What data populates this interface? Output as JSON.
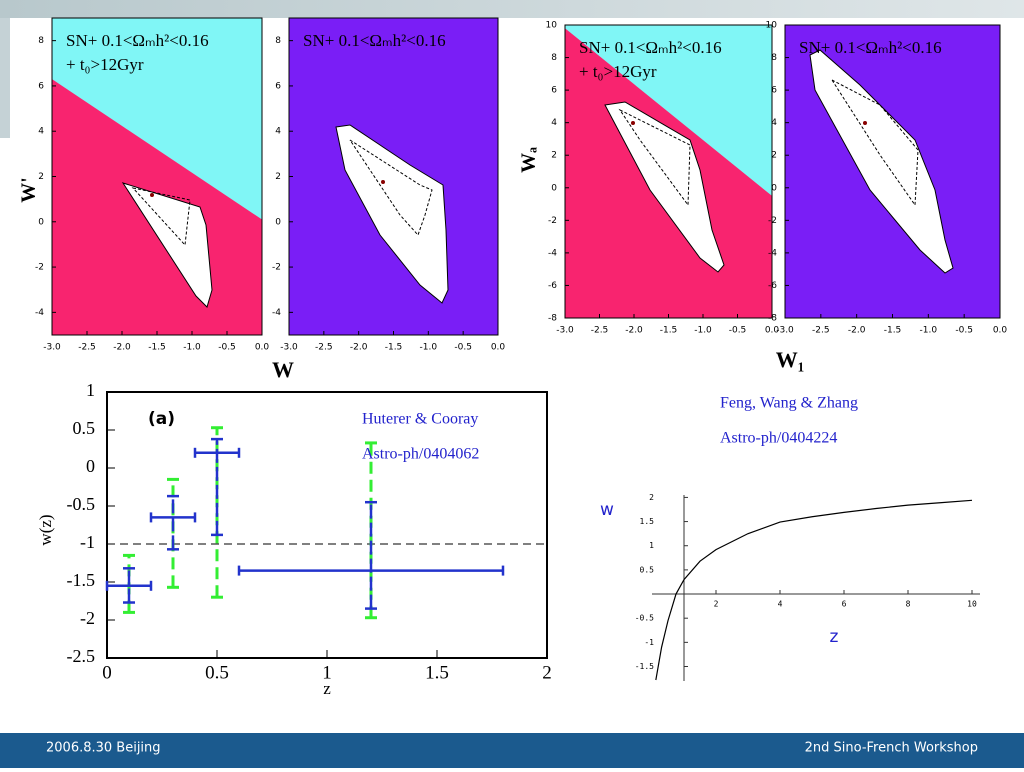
{
  "panels": [
    {
      "xlim": [
        -3,
        0
      ],
      "ylim": [
        -5,
        9
      ],
      "xticks": [
        {
          "value": -3,
          "label": "-3.0"
        },
        {
          "value": -2.5,
          "label": "-2.5"
        },
        {
          "value": -2,
          "label": "-2.0"
        },
        {
          "value": -1.5,
          "label": "-1.5"
        },
        {
          "value": -1,
          "label": "-1.0"
        },
        {
          "value": -0.5,
          "label": "-0.5"
        },
        {
          "value": 0,
          "label": "0.0"
        }
      ],
      "yticks": [
        -4,
        -2,
        0,
        2,
        4,
        6,
        8
      ],
      "background": "#f8246f",
      "region_color": "#80f6f6",
      "region_boundary": {
        "x": [
          -3,
          0
        ],
        "y": [
          6.3,
          0.1
        ]
      },
      "label_lines": [
        "SN+ 0.1<Ωₘh²<0.16",
        "+ t₀>12Gyr"
      ]
    },
    {
      "xlim": [
        -3,
        0
      ],
      "ylim": [
        -5,
        9
      ],
      "xticks": [
        {
          "value": -3,
          "label": "-3.0"
        },
        {
          "value": -2.5,
          "label": "-2.5"
        },
        {
          "value": -2,
          "label": "-2.0"
        },
        {
          "value": -1.5,
          "label": "-1.5"
        },
        {
          "value": -1,
          "label": "-1.0"
        },
        {
          "value": -0.5,
          "label": "-0.5"
        },
        {
          "value": 0,
          "label": "0.0"
        }
      ],
      "yticks": [
        -4,
        -2,
        0,
        2,
        4,
        6,
        8
      ],
      "background": "#7a1ef6",
      "label_lines": [
        "SN+ 0.1<Ωₘh²<0.16"
      ]
    },
    {
      "xlim": [
        -3,
        0
      ],
      "ylim": [
        -8,
        10
      ],
      "xticks": [
        {
          "value": -3,
          "label": "-3.0"
        },
        {
          "value": -2.5,
          "label": "-2.5"
        },
        {
          "value": -2,
          "label": "-2.0"
        },
        {
          "value": -1.5,
          "label": "-1.5"
        },
        {
          "value": -1,
          "label": "-1.0"
        },
        {
          "value": -0.5,
          "label": "-0.5"
        },
        {
          "value": 0,
          "label": "0.0"
        }
      ],
      "yticks": [
        -8,
        -6,
        -4,
        -2,
        0,
        2,
        4,
        6,
        8,
        10
      ],
      "background": "#f8246f",
      "region_color": "#80f6f6",
      "region_boundary": {
        "x": [
          -3,
          0
        ],
        "y": [
          9.8,
          -0.5
        ]
      },
      "label_lines": [
        "SN+ 0.1<Ωₘh²<0.16",
        "+ t₀>12Gyr"
      ]
    },
    {
      "xlim": [
        -3,
        0
      ],
      "ylim": [
        -8,
        10
      ],
      "xticks": [
        {
          "value": -3,
          "label": "-3.0"
        },
        {
          "value": -2.5,
          "label": "-2.5"
        },
        {
          "value": -2,
          "label": "-2.0"
        },
        {
          "value": -1.5,
          "label": "-1.5"
        },
        {
          "value": -1,
          "label": "-1.0"
        },
        {
          "value": -0.5,
          "label": "-0.5"
        },
        {
          "value": 0,
          "label": "0.0"
        }
      ],
      "yticks": [
        -8,
        -6,
        -4,
        -2,
        0,
        2,
        4,
        6,
        8,
        10
      ],
      "background": "#7a1ef6",
      "label_lines": [
        "SN+ 0.1<Ωₘh²<0.16"
      ]
    }
  ],
  "pair_labels": [
    {
      "ylabel": "W'",
      "xlabel": "W"
    },
    {
      "ylabel": "Wₐ",
      "xlabel": "W₁"
    }
  ],
  "error_chart": {
    "type": "errorbar",
    "title": "(a)",
    "xlabel": "z",
    "ylabel": "w(z)",
    "xlim": [
      0,
      2
    ],
    "ylim": [
      -2.5,
      1
    ],
    "xticks": [
      0,
      0.5,
      1,
      1.5,
      2
    ],
    "yticks": [
      -2.5,
      -2,
      -1.5,
      -1,
      -0.5,
      0,
      0.5,
      1
    ],
    "reference_line": -1,
    "blue": {
      "color": "#2233cc",
      "x": [
        0.1,
        0.3,
        0.5,
        1.2
      ],
      "xerr": [
        0.1,
        0.1,
        0.1,
        0.6
      ],
      "y": [
        -1.55,
        -0.65,
        0.2,
        -1.35
      ],
      "yerr_minus": [
        0.22,
        0.42,
        1.08,
        0.5
      ],
      "yerr_plus": [
        0.23,
        0.28,
        0.18,
        0.9
      ]
    },
    "green": {
      "color": "#33ee33",
      "x": [
        0.1,
        0.3,
        0.5,
        1.2
      ],
      "y_low": [
        -1.9,
        -1.57,
        -1.7,
        -1.97
      ],
      "y_high": [
        -1.15,
        -0.15,
        0.53,
        0.33
      ]
    }
  },
  "citations": [
    {
      "lines": [
        "Huterer & Cooray",
        "Astro-ph/0404062"
      ],
      "color": "#2222cc"
    },
    {
      "lines": [
        "Feng, Wang & Zhang",
        "Astro-ph/0404224"
      ],
      "color": "#2222cc"
    }
  ],
  "curve_chart": {
    "type": "line",
    "xlabel": "z",
    "ylabel": "w",
    "label_color": "#2222cc",
    "x": [
      0.12,
      0.3,
      0.5,
      0.75,
      1,
      1.5,
      2,
      3,
      4,
      5,
      6,
      7,
      8,
      9,
      10
    ],
    "values": [
      -1.78,
      -1.1,
      -0.55,
      0,
      0.3,
      0.68,
      0.92,
      1.25,
      1.49,
      1.6,
      1.69,
      1.77,
      1.84,
      1.89,
      1.94
    ],
    "xlim": [
      0,
      10.25
    ],
    "ylim": [
      -1.8,
      2.05
    ],
    "xticks": [
      2,
      4,
      6,
      8,
      10
    ],
    "yticks": [
      -1.5,
      -1,
      -0.5,
      0.5,
      1,
      1.5,
      2
    ],
    "yaxis_position": 1
  },
  "footer": {
    "left": "2006.8.30 Beijing",
    "right": "2nd Sino-French Workshop"
  }
}
